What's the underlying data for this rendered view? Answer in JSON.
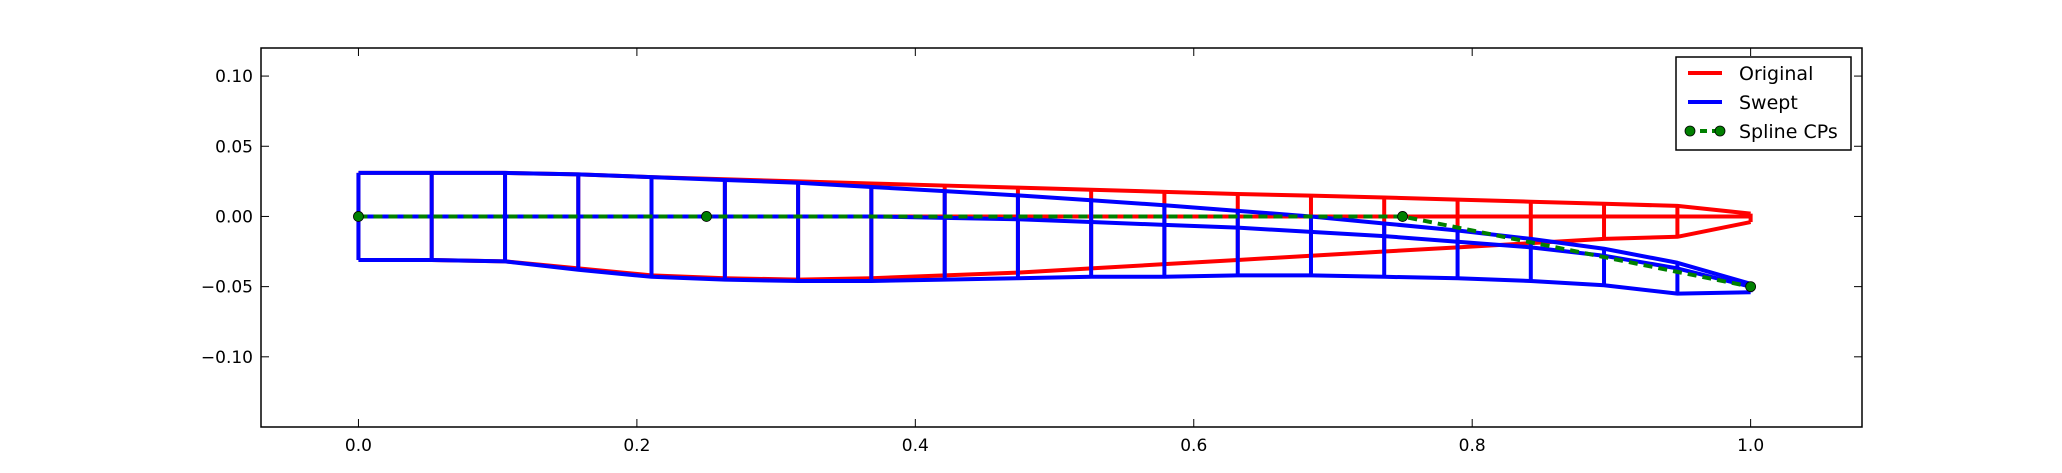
{
  "chart_data": {
    "type": "line",
    "title": "",
    "xlabel": "",
    "ylabel": "",
    "xlim": [
      -0.07,
      1.08
    ],
    "ylim": [
      -0.15,
      0.12
    ],
    "xticks": [
      0.0,
      0.2,
      0.4,
      0.6,
      0.8,
      1.0
    ],
    "xtick_labels": [
      "0.0",
      "0.2",
      "0.4",
      "0.6",
      "0.8",
      "1.0"
    ],
    "yticks": [
      0.1,
      0.05,
      0.0,
      -0.05,
      -0.1
    ],
    "ytick_labels": [
      "0.10",
      "0.05",
      "0.00",
      "−0.05",
      "−0.10"
    ],
    "grid": false,
    "legend_position": "top-right",
    "legend": [
      "Original",
      "Swept",
      "Spline CPs"
    ],
    "series": [
      {
        "name": "Original",
        "color": "#ff0000",
        "x": [
          0.0,
          0.0526,
          0.1053,
          0.1579,
          0.2105,
          0.2632,
          0.3158,
          0.3684,
          0.4211,
          0.4737,
          0.5263,
          0.5789,
          0.6316,
          0.6842,
          0.7368,
          0.7895,
          0.8421,
          0.8947,
          0.9474,
          1.0
        ],
        "upper": [
          0.031,
          0.031,
          0.031,
          0.03,
          0.028,
          0.0265,
          0.025,
          0.0235,
          0.022,
          0.0205,
          0.019,
          0.0175,
          0.016,
          0.0148,
          0.0135,
          0.012,
          0.0105,
          0.009,
          0.0075,
          0.002
        ],
        "camber": [
          0.0,
          0.0,
          0.0,
          0.0,
          0.0,
          0.0,
          0.0,
          0.0,
          0.0,
          0.0,
          0.0,
          0.0,
          0.0,
          0.0,
          0.0,
          0.0,
          0.0,
          0.0,
          0.0,
          0.0
        ],
        "lower": [
          -0.031,
          -0.031,
          -0.032,
          -0.037,
          -0.042,
          -0.044,
          -0.045,
          -0.044,
          -0.042,
          -0.04,
          -0.037,
          -0.034,
          -0.031,
          -0.028,
          -0.025,
          -0.022,
          -0.019,
          -0.016,
          -0.0145,
          -0.004
        ]
      },
      {
        "name": "Swept",
        "color": "#0000ff",
        "x": [
          0.0,
          0.0526,
          0.1053,
          0.1579,
          0.2105,
          0.2632,
          0.3158,
          0.3684,
          0.4211,
          0.4737,
          0.5263,
          0.5789,
          0.6316,
          0.6842,
          0.7368,
          0.7895,
          0.8421,
          0.8947,
          0.9474,
          1.0
        ],
        "upper": [
          0.031,
          0.031,
          0.031,
          0.03,
          0.028,
          0.026,
          0.024,
          0.021,
          0.018,
          0.015,
          0.0115,
          0.008,
          0.004,
          0.0,
          -0.005,
          -0.01,
          -0.016,
          -0.023,
          -0.033,
          -0.048
        ],
        "camber": [
          0.0,
          0.0,
          0.0,
          0.0,
          0.0,
          0.0,
          0.0,
          0.0,
          -0.001,
          -0.002,
          -0.004,
          -0.006,
          -0.008,
          -0.011,
          -0.014,
          -0.018,
          -0.022,
          -0.028,
          -0.037,
          -0.05
        ],
        "lower": [
          -0.031,
          -0.031,
          -0.032,
          -0.038,
          -0.043,
          -0.045,
          -0.046,
          -0.046,
          -0.045,
          -0.044,
          -0.043,
          -0.043,
          -0.042,
          -0.042,
          -0.043,
          -0.044,
          -0.046,
          -0.049,
          -0.055,
          -0.054
        ]
      },
      {
        "name": "Spline CPs",
        "color": "#008000",
        "marker": "circle",
        "linestyle": "dashed",
        "x": [
          0.0,
          0.25,
          0.75,
          1.0
        ],
        "y": [
          0.0,
          0.0,
          0.0,
          -0.05
        ]
      }
    ]
  }
}
